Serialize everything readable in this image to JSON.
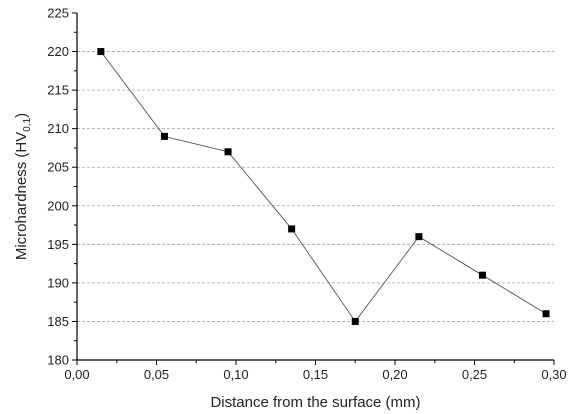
{
  "chart_data": {
    "type": "line",
    "xlabel": "Distance from the surface (mm)",
    "ylabel": {
      "main": "Microhardness (HV",
      "subscript": "0,1",
      "close": ")"
    },
    "xlim": [
      0.0,
      0.3
    ],
    "ylim": [
      180,
      225
    ],
    "x_ticks": [
      "0,00",
      "0,05",
      "0,10",
      "0,15",
      "0,20",
      "0,25",
      "0,30"
    ],
    "y_ticks": [
      "180",
      "185",
      "190",
      "195",
      "200",
      "205",
      "210",
      "215",
      "220",
      "225"
    ],
    "grid": "horizontal-dashed",
    "marker": "square",
    "series": [
      {
        "x": [
          0.015,
          0.055,
          0.095,
          0.135,
          0.175,
          0.215,
          0.255,
          0.295
        ],
        "y": [
          220,
          209,
          207,
          197,
          185,
          196,
          191,
          186
        ]
      }
    ],
    "colors": {
      "line": "#555555",
      "marker": "#000000",
      "grid": "#a0a0a0",
      "axis": "#000000"
    }
  }
}
